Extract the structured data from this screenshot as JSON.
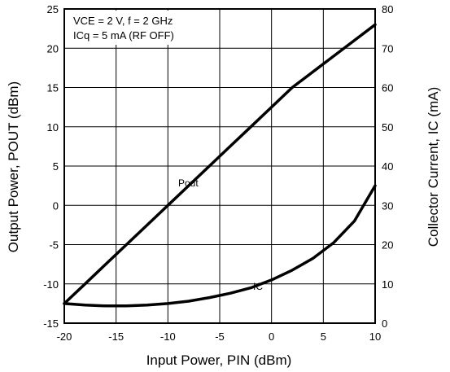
{
  "chart_data": {
    "type": "line",
    "title": "",
    "annotation": {
      "line1": "VCE = 2 V, f = 2 GHz",
      "line2": "ICq = 5 mA (RF OFF)"
    },
    "x": [
      -20,
      -18,
      -16,
      -14,
      -12,
      -10,
      -8,
      -6,
      -4,
      -2,
      0,
      2,
      4,
      6,
      8,
      10
    ],
    "xlabel": "Input Power, PIN (dBm)",
    "ylabel_left": "Output Power, POUT (dBm)",
    "ylabel_right": "Collector Current, IC (mA)",
    "xlim": [
      -20,
      10
    ],
    "ylim_left": [
      -15,
      25
    ],
    "ylim_right": [
      0,
      80
    ],
    "xticks": [
      "-20",
      "-15",
      "-10",
      "-5",
      "0",
      "5",
      "10"
    ],
    "yticks_left": [
      "-15",
      "-10",
      "-5",
      "0",
      "5",
      "10",
      "15",
      "20",
      "25"
    ],
    "yticks_right": [
      "0",
      "10",
      "20",
      "30",
      "40",
      "50",
      "60",
      "70",
      "80"
    ],
    "grid": true,
    "series": [
      {
        "name": "Pout",
        "axis": "left",
        "values": [
          -12.5,
          -10.0,
          -7.5,
          -5.0,
          -2.5,
          0.0,
          2.5,
          5.0,
          7.5,
          10.0,
          12.5,
          15.0,
          17.0,
          19.0,
          21.0,
          23.0
        ]
      },
      {
        "name": "IC",
        "axis": "right",
        "values": [
          5.0,
          4.6,
          4.4,
          4.4,
          4.6,
          5.0,
          5.6,
          6.5,
          7.6,
          9.0,
          11.0,
          13.5,
          16.5,
          20.5,
          26.0,
          35.0
        ]
      }
    ]
  }
}
